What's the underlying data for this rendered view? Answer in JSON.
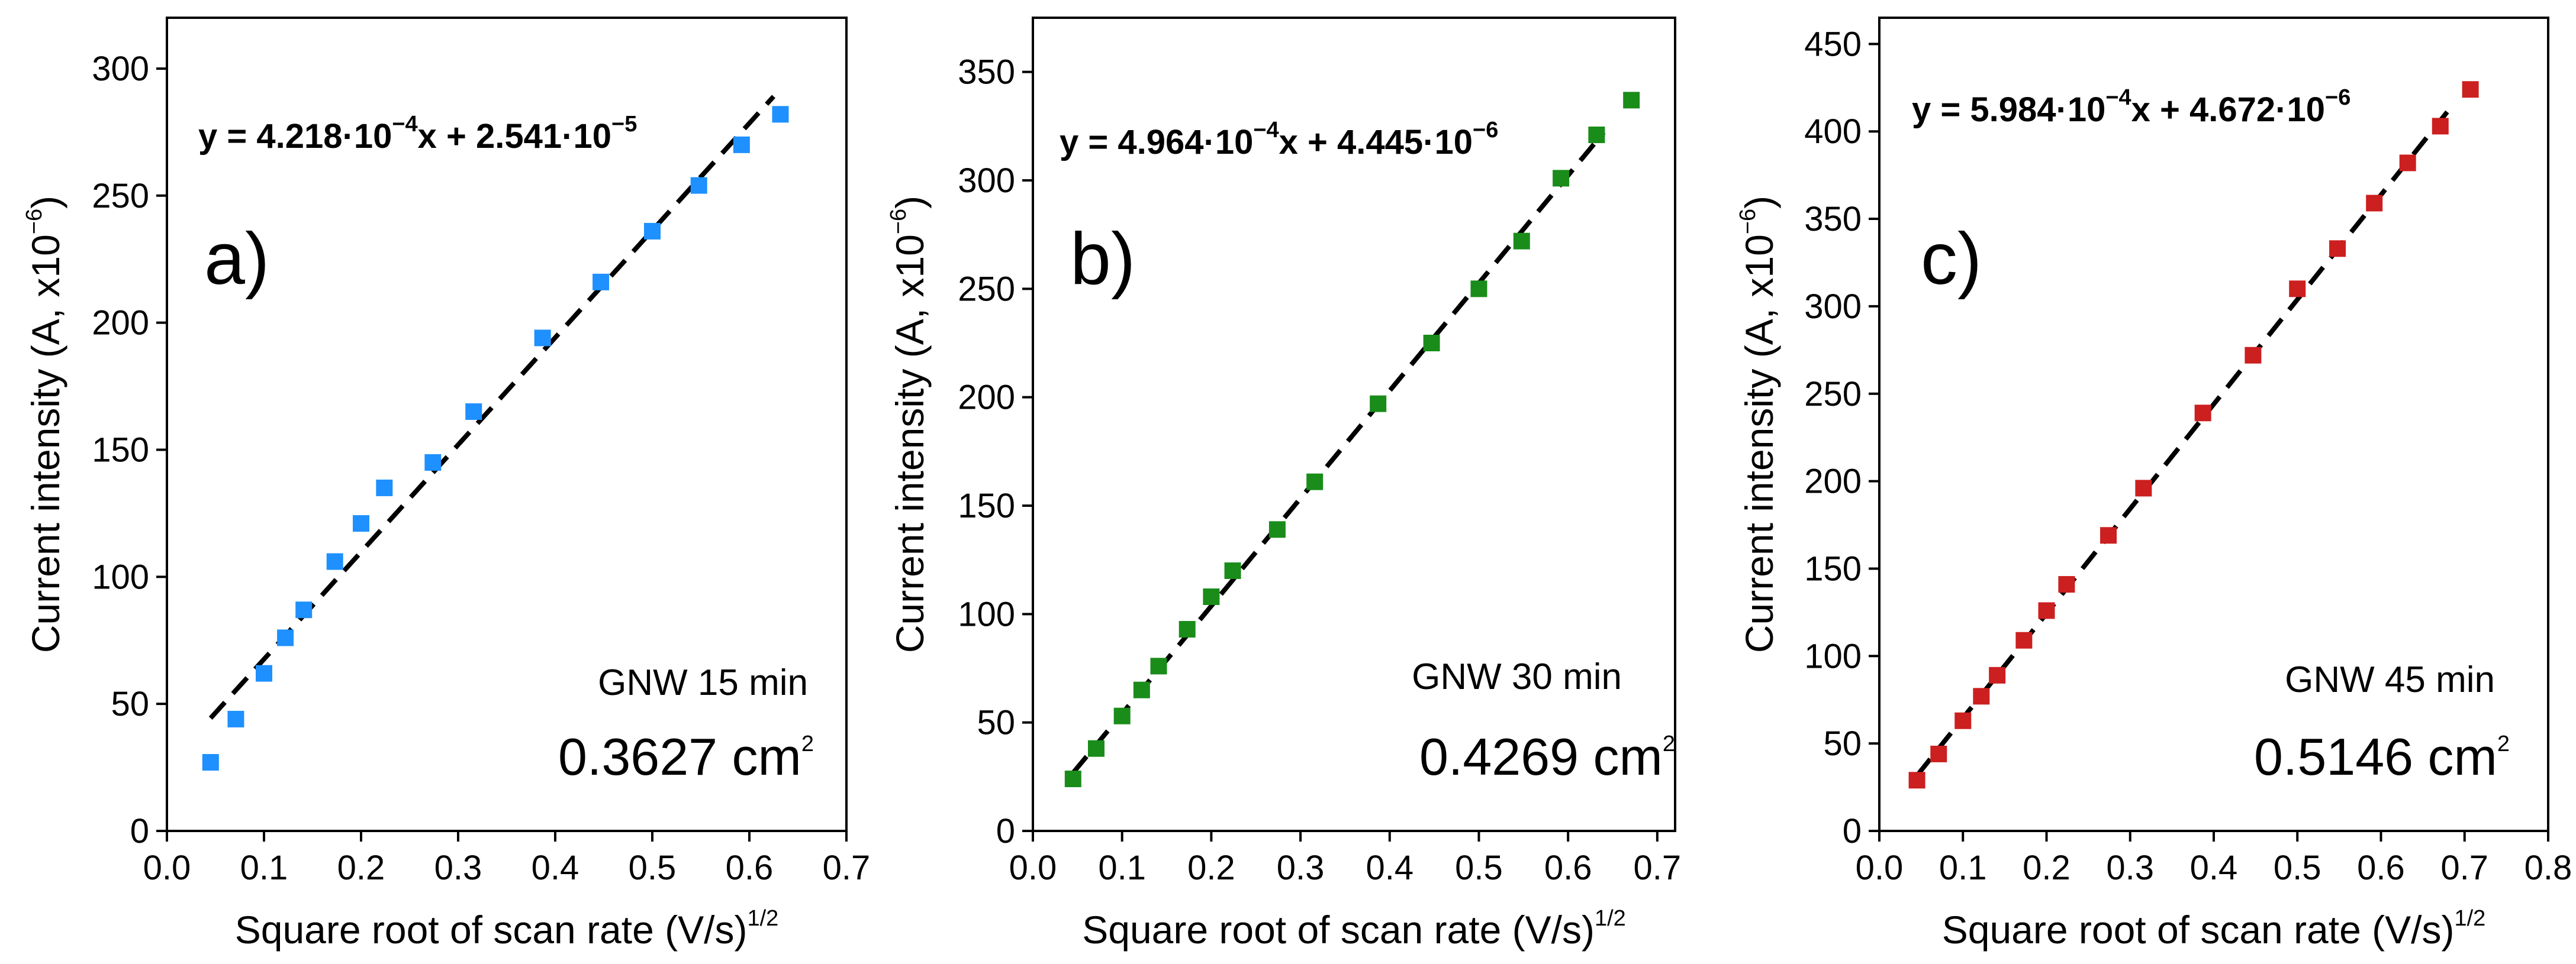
{
  "chart_data": [
    {
      "type": "scatter",
      "panel": "a)",
      "sample": "GNW 15 min",
      "area_value": "0.3627 cm",
      "area_exp": "2",
      "equation": {
        "prefix": "y = 4.218",
        "m1": "10",
        "e1": "−4",
        "mid": "x + 2.541",
        "m2": "10",
        "e2": "−5"
      },
      "xlabel": "Square root of scan rate (V/s)",
      "xlabel_sup": "1/2",
      "ylabel": "Current intensity (A, x10",
      "ylabel_sup": "−6",
      "ylabel_end": ")",
      "xlim": [
        0,
        0.7
      ],
      "ylim": [
        0,
        320
      ],
      "xticks": [
        0.0,
        0.1,
        0.2,
        0.3,
        0.4,
        0.5,
        0.6,
        0.7
      ],
      "yticks": [
        0,
        50,
        100,
        150,
        200,
        250,
        300
      ],
      "color": "#1e90ff",
      "fit": {
        "slope": 421.8,
        "intercept": 25.41,
        "x_start": 0.045,
        "x_end": 0.625
      },
      "x": [
        0.045,
        0.071,
        0.1,
        0.122,
        0.141,
        0.173,
        0.2,
        0.224,
        0.274,
        0.316,
        0.387,
        0.447,
        0.5,
        0.548,
        0.592,
        0.632
      ],
      "y": [
        27,
        44,
        62,
        76,
        87,
        106,
        121,
        135,
        145,
        165,
        194,
        216,
        236,
        254,
        270,
        282
      ]
    },
    {
      "type": "scatter",
      "panel": "b)",
      "sample": "GNW 30 min",
      "area_value": "0.4269 cm",
      "area_exp": "2",
      "equation": {
        "prefix": "y = 4.964",
        "m1": "10",
        "e1": "−4",
        "mid": "x + 4.445",
        "m2": "10",
        "e2": "−6"
      },
      "xlabel": "Square root of scan rate (V/s)",
      "xlabel_sup": "1/2",
      "ylabel": "Current intensity (A, x10",
      "ylabel_sup": "−6",
      "ylabel_end": ")",
      "xlim": [
        0,
        0.72
      ],
      "ylim": [
        0,
        375
      ],
      "xticks": [
        0.0,
        0.1,
        0.2,
        0.3,
        0.4,
        0.5,
        0.6,
        0.7
      ],
      "yticks": [
        0,
        50,
        100,
        150,
        200,
        250,
        300,
        350
      ],
      "color": "#1a8c1a",
      "fit": {
        "slope": 496.4,
        "intercept": 4.445,
        "x_start": 0.045,
        "x_end": 0.64
      },
      "x": [
        0.045,
        0.071,
        0.1,
        0.122,
        0.141,
        0.173,
        0.2,
        0.224,
        0.274,
        0.316,
        0.387,
        0.447,
        0.5,
        0.548,
        0.592,
        0.632,
        0.671
      ],
      "y": [
        24,
        38,
        53,
        65,
        76,
        93,
        108,
        120,
        139,
        161,
        197,
        225,
        250,
        272,
        301,
        321,
        337
      ]
    },
    {
      "type": "scatter",
      "panel": "c)",
      "sample": "GNW 45 min",
      "area_value": "0.5146 cm",
      "area_exp": "2",
      "equation": {
        "prefix": "y = 5.984",
        "m1": "10",
        "e1": "−4",
        "mid": "x + 4.672",
        "m2": "10",
        "e2": "−6"
      },
      "xlabel": "Square root of scan rate (V/s)",
      "xlabel_sup": "1/2",
      "ylabel": "Current intensity (A, x10",
      "ylabel_sup": "−6",
      "ylabel_end": ")",
      "xlim": [
        0,
        0.8
      ],
      "ylim": [
        0,
        465
      ],
      "xticks": [
        0.0,
        0.1,
        0.2,
        0.3,
        0.4,
        0.5,
        0.6,
        0.7,
        0.8
      ],
      "yticks": [
        0,
        50,
        100,
        150,
        200,
        250,
        300,
        350,
        400,
        450
      ],
      "color": "#cc1f1f",
      "fit": {
        "slope": 598.4,
        "intercept": 4.672,
        "x_start": 0.045,
        "x_end": 0.68
      },
      "x": [
        0.045,
        0.071,
        0.1,
        0.122,
        0.141,
        0.173,
        0.2,
        0.224,
        0.274,
        0.316,
        0.387,
        0.447,
        0.5,
        0.548,
        0.592,
        0.632,
        0.671,
        0.707
      ],
      "y": [
        29,
        44,
        63,
        77,
        89,
        109,
        126,
        141,
        169,
        196,
        239,
        272,
        310,
        333,
        359,
        382,
        403,
        424
      ]
    }
  ]
}
